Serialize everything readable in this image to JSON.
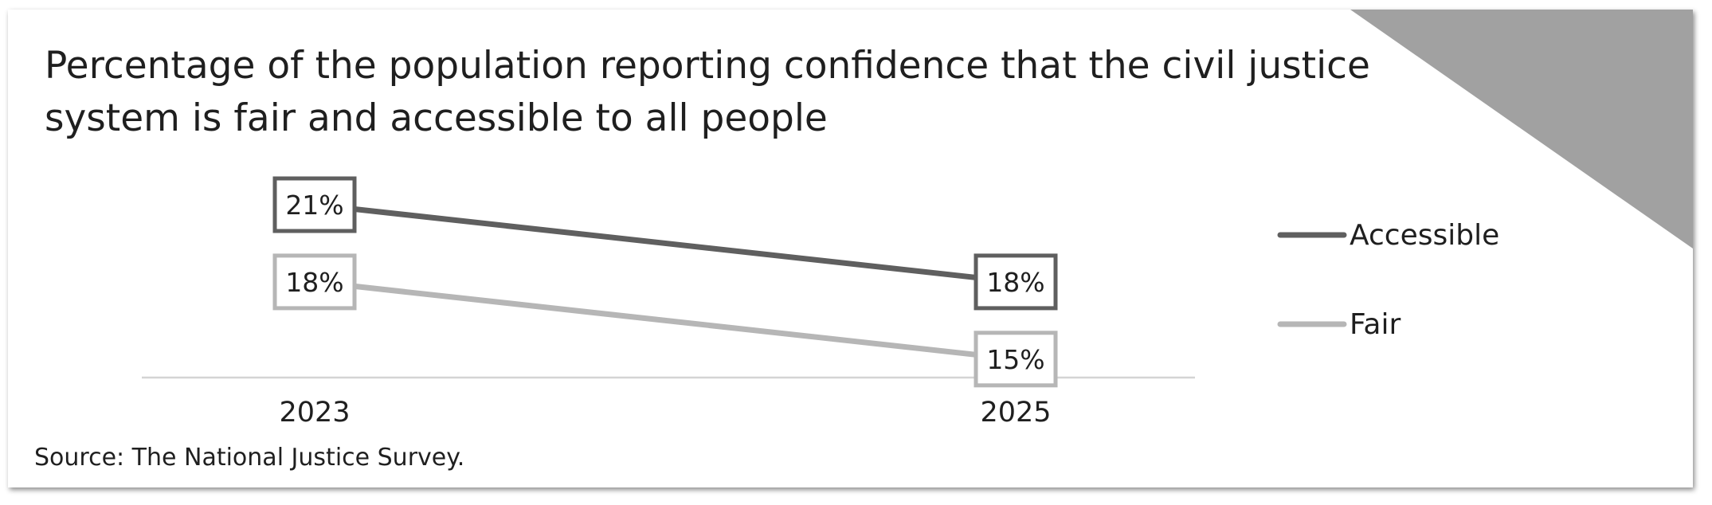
{
  "title": "Percentage of the population reporting confidence that the civil justice system is fair and accessible to all people",
  "source": "Source: The National Justice Survey.",
  "colors": {
    "accessible": "#5f5f5f",
    "fair": "#b6b6b6",
    "axis": "#d4d4d4",
    "corner": "#a1a1a1"
  },
  "chart_data": {
    "type": "line",
    "title": "Percentage of the population reporting confidence that the civil justice system is fair and accessible to all people",
    "categories": [
      "2023",
      "2025"
    ],
    "series": [
      {
        "name": "Accessible",
        "values": [
          21,
          18
        ],
        "labels": [
          "21%",
          "18%"
        ]
      },
      {
        "name": "Fair",
        "values": [
          18,
          15
        ],
        "labels": [
          "18%",
          "15%"
        ]
      }
    ],
    "ylim": [
      12,
      23
    ],
    "grid": false,
    "legend": "right",
    "data_labels": true
  }
}
